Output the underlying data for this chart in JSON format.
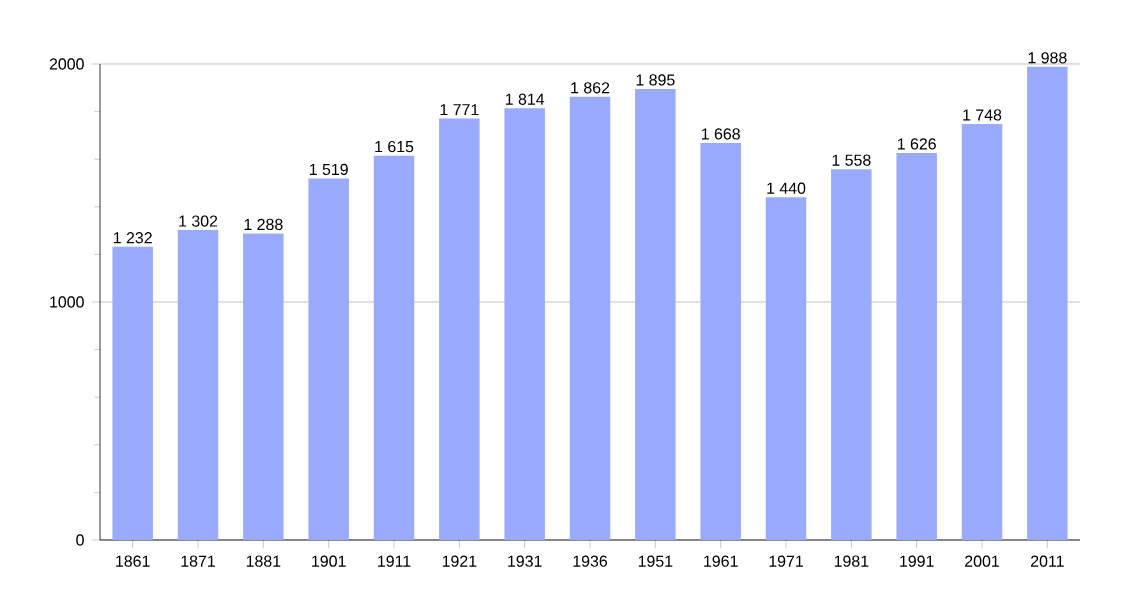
{
  "chart_data": {
    "type": "bar",
    "categories": [
      "1861",
      "1871",
      "1881",
      "1901",
      "1911",
      "1921",
      "1931",
      "1936",
      "1951",
      "1961",
      "1971",
      "1981",
      "1991",
      "2001",
      "2011"
    ],
    "values": [
      1232,
      1302,
      1288,
      1519,
      1615,
      1771,
      1814,
      1862,
      1895,
      1668,
      1440,
      1558,
      1626,
      1748,
      1988
    ],
    "value_labels": [
      "1 232",
      "1 302",
      "1 288",
      "1 519",
      "1 615",
      "1 771",
      "1 814",
      "1 862",
      "1 895",
      "1 668",
      "1 440",
      "1 558",
      "1 626",
      "1 748",
      "1 988"
    ],
    "color": "#99aaff",
    "ylim": [
      0,
      2000
    ],
    "yticks": [
      0,
      1000,
      2000
    ],
    "grid": "y"
  }
}
